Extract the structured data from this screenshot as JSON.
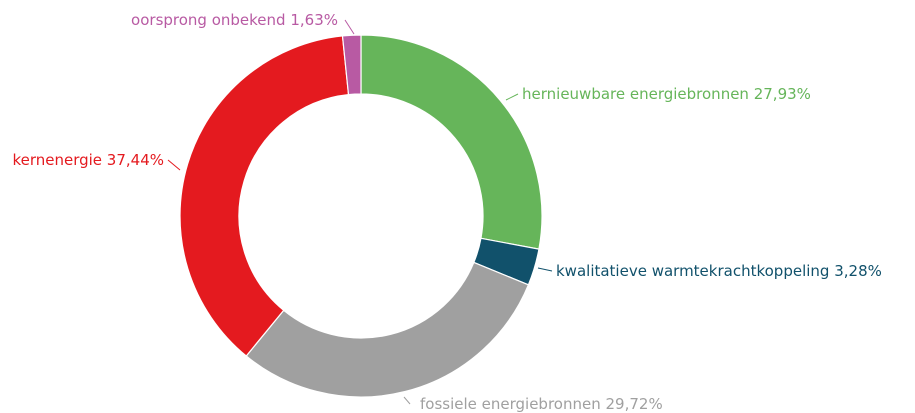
{
  "chart_data": {
    "type": "donut",
    "categories": [
      "hernieuwbare energiebronnen",
      "kwalitatieve warmtekrachtkoppeling",
      "fossiele energiebronnen",
      "kernenergie",
      "oorsprong onbekend"
    ],
    "values": [
      27.93,
      3.28,
      29.72,
      37.44,
      1.63
    ],
    "value_labels": [
      "27,93%",
      "3,28%",
      "29,72%",
      "37,44%",
      "1,63%"
    ],
    "colors": [
      "#66b55a",
      "#11516b",
      "#a0a0a0",
      "#e41a1f",
      "#b85aa3"
    ]
  }
}
